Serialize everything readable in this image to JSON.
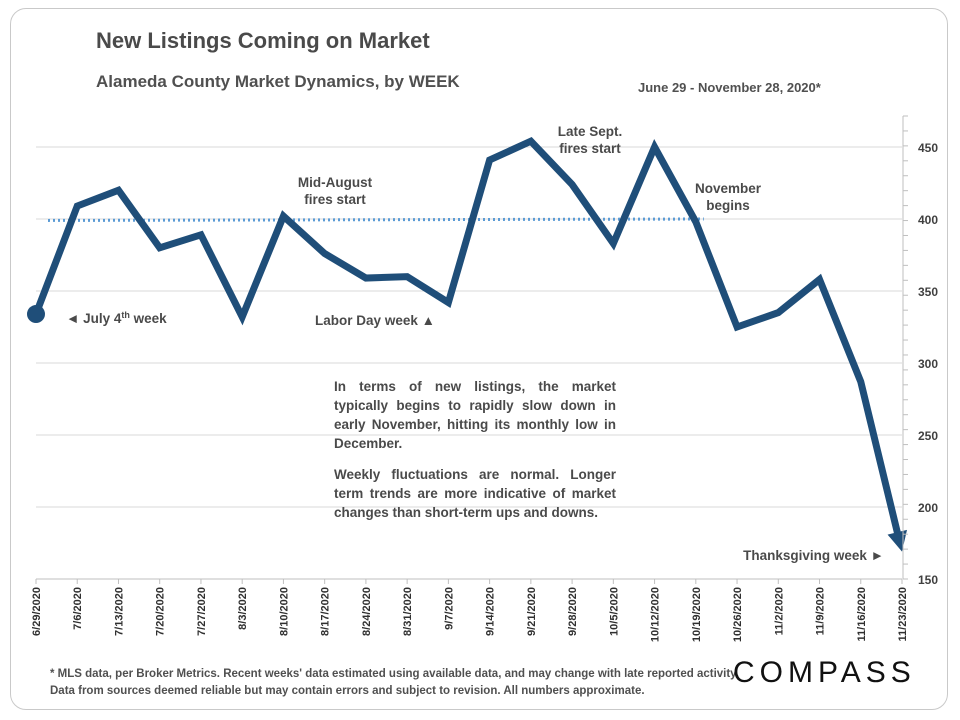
{
  "chart_data": {
    "type": "line",
    "title": "New Listings Coming on Market",
    "subtitle": "Alameda County Market Dynamics, by WEEK",
    "date_range": "June 29 - November 28, 2020*",
    "categories": [
      "6/29/2020",
      "7/6/2020",
      "7/13/2020",
      "7/20/2020",
      "7/27/2020",
      "8/3/2020",
      "8/10/2020",
      "8/17/2020",
      "8/24/2020",
      "8/31/2020",
      "9/7/2020",
      "9/14/2020",
      "9/21/2020",
      "9/28/2020",
      "10/5/2020",
      "10/12/2020",
      "10/19/2020",
      "10/26/2020",
      "11/2/2020",
      "11/9/2020",
      "11/16/2020",
      "11/23/2020"
    ],
    "values": [
      334,
      409,
      420,
      380,
      389,
      332,
      402,
      376,
      359,
      360,
      342,
      441,
      454,
      424,
      383,
      450,
      398,
      325,
      335,
      358,
      287,
      169
    ],
    "trend": {
      "from": 399,
      "to": 400,
      "style": "dotted"
    },
    "ylim": [
      150,
      460
    ],
    "yticks": [
      150,
      200,
      250,
      300,
      350,
      400,
      450
    ],
    "y_axis_side": "right",
    "grid": true,
    "colors": {
      "line": "#1f4e79",
      "trend": "#5b9bd5",
      "grid": "#d9d9d9"
    },
    "annotations": [
      {
        "lines": [
          "◄  July 4th week"
        ],
        "sup": "th",
        "at_index": 0
      },
      {
        "lines": [
          "Mid-August",
          "fires start"
        ],
        "at_index": 6
      },
      {
        "lines": [
          "Labor Day week ▲"
        ],
        "at_index": 10
      },
      {
        "lines": [
          "Late Sept.",
          "fires start"
        ],
        "at_index": 12
      },
      {
        "lines": [
          "November",
          "begins"
        ],
        "at_index": 16
      },
      {
        "lines": [
          "Thanksgiving week ►"
        ],
        "at_index": 21
      }
    ]
  },
  "notes": {
    "p1": "In terms of new listings, the market typically begins to rapidly slow down in early November, hitting its monthly low in December.",
    "p2": "Weekly fluctuations are normal. Longer term trends are more indicative of market changes than short-term ups and downs."
  },
  "footnote": "* MLS data, per Broker Metrics. Recent weeks' data estimated using available data, and may change with late reported activity. Data from sources deemed reliable but may contain errors and subject to revision. All numbers approximate.",
  "logo": "COMPASS"
}
